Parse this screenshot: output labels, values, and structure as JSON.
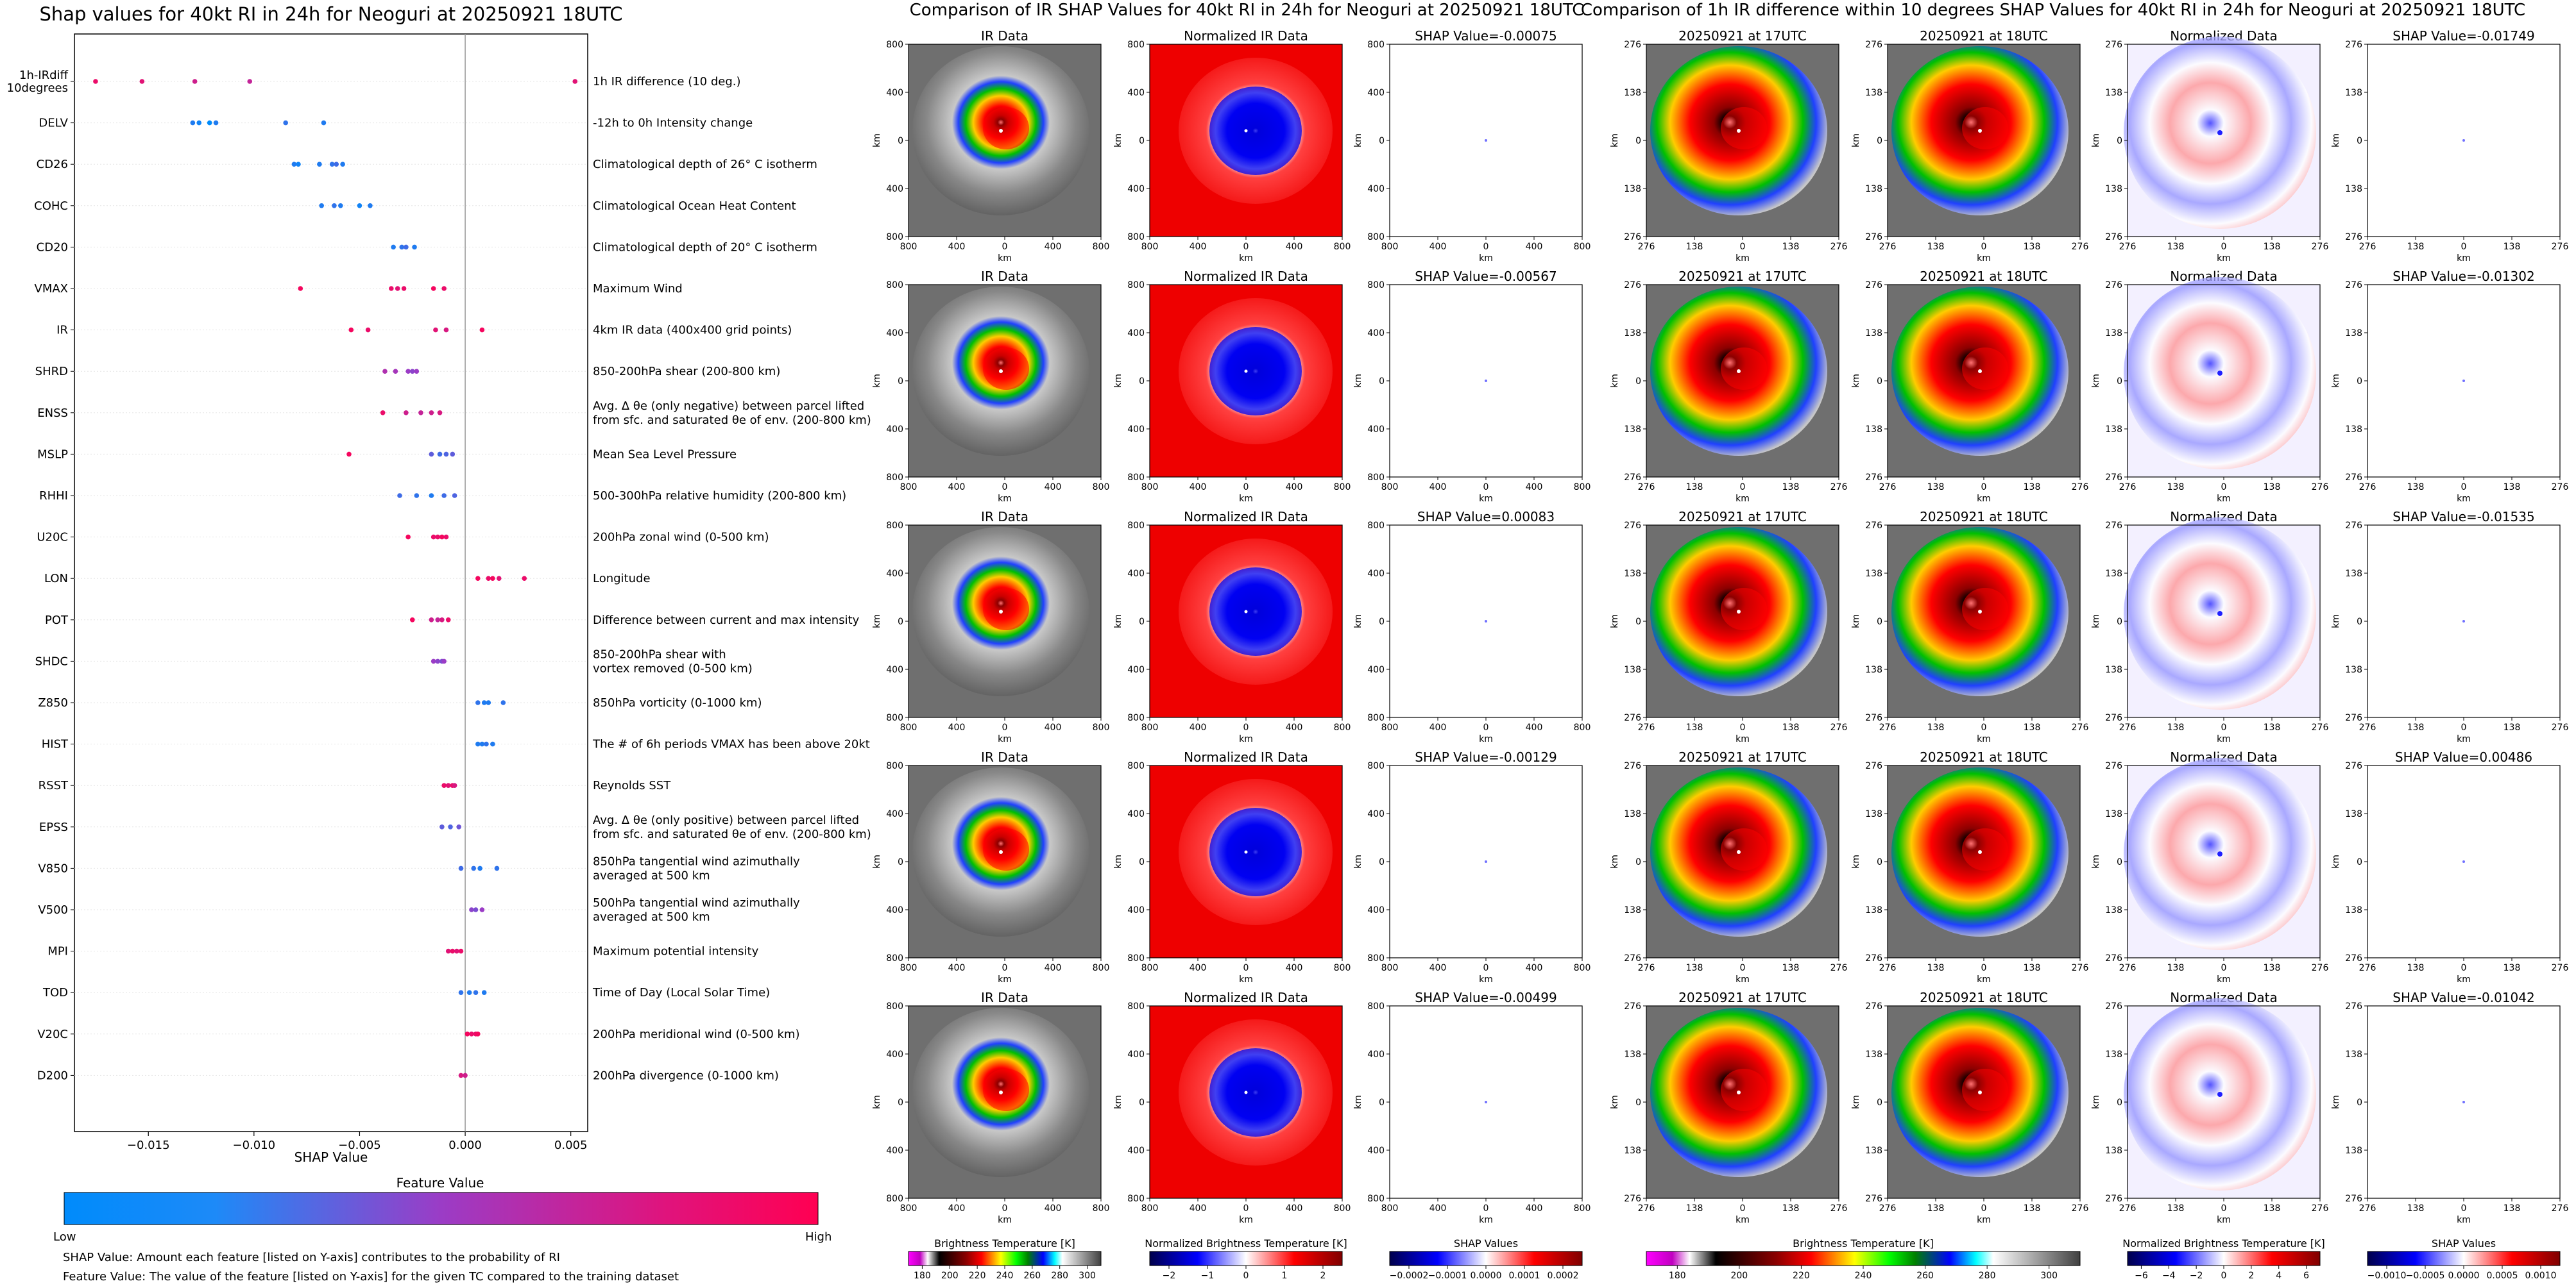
{
  "titles": {
    "left": "Shap values for 40kt RI in 24h for Neoguri at 20250921 18UTC",
    "middle": "Comparison of IR SHAP Values for 40kt RI in 24h for Neoguri at 20250921 18UTC",
    "right": "Comparison of 1h IR difference within 10 degrees SHAP Values for 40kt RI in 24h for Neoguri at 20250921 18UTC"
  },
  "left_panel": {
    "xlabel": "SHAP Value",
    "colorbar_title": "Feature Value",
    "colorbar_low": "Low",
    "colorbar_high": "High",
    "note1": "SHAP Value: Amount each feature [listed on Y-axis] contributes to the probability of RI",
    "note2": "Feature Value: The value of the feature [listed on Y-axis] for the given TC compared to the training dataset",
    "colors": {
      "low": "#008bfb",
      "mid": "#9b3cc6",
      "high": "#ff0052"
    }
  },
  "chart_data": [
    {
      "type": "scatter",
      "title": "Shap values for 40kt RI in 24h for Neoguri at 20250921 18UTC",
      "xlabel": "SHAP Value",
      "xlim": [
        -0.0185,
        0.0058
      ],
      "xticks": [
        -0.015,
        -0.01,
        -0.005,
        0.0,
        0.005
      ],
      "xtick_labels": [
        "−0.015",
        "−0.010",
        "−0.005",
        "0.000",
        "0.005"
      ],
      "features": [
        {
          "code": "1h-IRdiff\n10degrees",
          "desc": "1h IR difference (10 deg.)",
          "points": [
            [
              -0.0175,
              0.9
            ],
            [
              -0.0153,
              0.85
            ],
            [
              -0.0128,
              0.75
            ],
            [
              -0.0102,
              0.7
            ],
            [
              0.0052,
              0.85
            ]
          ]
        },
        {
          "code": "DELV",
          "desc": "-12h to 0h Intensity change",
          "points": [
            [
              -0.0129,
              0.1
            ],
            [
              -0.0126,
              0.05
            ],
            [
              -0.0121,
              0.0
            ],
            [
              -0.0118,
              0.1
            ],
            [
              -0.0085,
              0.15
            ],
            [
              -0.0067,
              0.1
            ]
          ]
        },
        {
          "code": "CD26",
          "desc": "Climatological depth of 26° C isotherm",
          "points": [
            [
              -0.0081,
              0.1
            ],
            [
              -0.0079,
              0.05
            ],
            [
              -0.0069,
              0.1
            ],
            [
              -0.0063,
              0.15
            ],
            [
              -0.0061,
              0.2
            ],
            [
              -0.0058,
              0.1
            ]
          ]
        },
        {
          "code": "COHC",
          "desc": "Climatological Ocean Heat Content",
          "points": [
            [
              -0.0068,
              0.1
            ],
            [
              -0.0062,
              0.15
            ],
            [
              -0.0059,
              0.1
            ],
            [
              -0.005,
              0.05
            ],
            [
              -0.0045,
              0.1
            ]
          ]
        },
        {
          "code": "CD20",
          "desc": "Climatological depth of 20° C isotherm",
          "points": [
            [
              -0.0034,
              0.1
            ],
            [
              -0.003,
              0.15
            ],
            [
              -0.0028,
              0.2
            ],
            [
              -0.0024,
              0.1
            ]
          ]
        },
        {
          "code": "VMAX",
          "desc": "Maximum Wind",
          "points": [
            [
              -0.0078,
              0.95
            ],
            [
              -0.0035,
              0.9
            ],
            [
              -0.0032,
              0.85
            ],
            [
              -0.0029,
              0.9
            ],
            [
              -0.0015,
              0.95
            ],
            [
              -0.001,
              0.9
            ]
          ]
        },
        {
          "code": "IR",
          "desc": "4km IR data (400x400 grid points)",
          "points": [
            [
              -0.0054,
              0.95
            ],
            [
              -0.0046,
              0.9
            ],
            [
              -0.0014,
              0.85
            ],
            [
              -0.0009,
              0.8
            ],
            [
              0.0008,
              0.95
            ]
          ]
        },
        {
          "code": "SHRD",
          "desc": "850-200hPa shear (200-800 km)",
          "points": [
            [
              -0.0038,
              0.6
            ],
            [
              -0.0033,
              0.55
            ],
            [
              -0.0027,
              0.5
            ],
            [
              -0.0025,
              0.45
            ],
            [
              -0.0023,
              0.5
            ]
          ]
        },
        {
          "code": "ENSS",
          "desc": "Avg. Δ θe (only negative) between parcel lifted\nfrom sfc. and saturated θe of env. (200-800 km)",
          "points": [
            [
              -0.0039,
              0.9
            ],
            [
              -0.0028,
              0.75
            ],
            [
              -0.0021,
              0.7
            ],
            [
              -0.0016,
              0.75
            ],
            [
              -0.0012,
              0.8
            ]
          ]
        },
        {
          "code": "MSLP",
          "desc": "Mean Sea Level Pressure",
          "points": [
            [
              -0.0055,
              0.95
            ],
            [
              -0.0016,
              0.3
            ],
            [
              -0.0012,
              0.2
            ],
            [
              -0.0009,
              0.25
            ],
            [
              -0.0006,
              0.3
            ]
          ]
        },
        {
          "code": "RHHI",
          "desc": "500-300hPa relative humidity (200-800 km)",
          "points": [
            [
              -0.0031,
              0.2
            ],
            [
              -0.0023,
              0.15
            ],
            [
              -0.0016,
              0.1
            ],
            [
              -0.001,
              0.2
            ],
            [
              -0.0005,
              0.25
            ]
          ]
        },
        {
          "code": "U20C",
          "desc": "200hPa zonal wind (0-500 km)",
          "points": [
            [
              -0.0027,
              0.95
            ],
            [
              -0.0015,
              0.9
            ],
            [
              -0.0013,
              0.9
            ],
            [
              -0.0011,
              0.95
            ],
            [
              -0.0009,
              0.9
            ]
          ]
        },
        {
          "code": "LON",
          "desc": "Longitude",
          "points": [
            [
              0.0006,
              0.95
            ],
            [
              0.0011,
              0.9
            ],
            [
              0.0013,
              0.95
            ],
            [
              0.0016,
              0.85
            ],
            [
              0.0028,
              0.9
            ]
          ]
        },
        {
          "code": "POT",
          "desc": "Difference between current and max intensity",
          "points": [
            [
              -0.0025,
              0.95
            ],
            [
              -0.0016,
              0.75
            ],
            [
              -0.0013,
              0.7
            ],
            [
              -0.0011,
              0.8
            ],
            [
              -0.0008,
              0.9
            ]
          ]
        },
        {
          "code": "SHDC",
          "desc": "850-200hPa shear with\nvortex removed (0-500 km)",
          "points": [
            [
              -0.0015,
              0.5
            ],
            [
              -0.0013,
              0.45
            ],
            [
              -0.0011,
              0.4
            ],
            [
              -0.001,
              0.5
            ]
          ]
        },
        {
          "code": "Z850",
          "desc": "850hPa vorticity (0-1000 km)",
          "points": [
            [
              0.0006,
              0.15
            ],
            [
              0.0009,
              0.1
            ],
            [
              0.0011,
              0.1
            ],
            [
              0.0018,
              0.15
            ]
          ]
        },
        {
          "code": "HIST",
          "desc": "The # of 6h periods VMAX has been above 20kt",
          "points": [
            [
              0.0006,
              0.1
            ],
            [
              0.0008,
              0.1
            ],
            [
              0.001,
              0.15
            ],
            [
              0.0013,
              0.1
            ]
          ]
        },
        {
          "code": "RSST",
          "desc": "Reynolds SST",
          "points": [
            [
              -0.001,
              0.9
            ],
            [
              -0.0008,
              0.85
            ],
            [
              -0.0006,
              0.9
            ],
            [
              -0.0005,
              0.8
            ]
          ]
        },
        {
          "code": "EPSS",
          "desc": "Avg. Δ θe (only positive) between parcel lifted\nfrom sfc. and saturated θe of env. (200-800 km)",
          "points": [
            [
              -0.0011,
              0.3
            ],
            [
              -0.0007,
              0.25
            ],
            [
              -0.0003,
              0.35
            ]
          ]
        },
        {
          "code": "V850",
          "desc": "850hPa tangential wind azimuthally\naveraged at 500 km",
          "points": [
            [
              -0.0002,
              0.2
            ],
            [
              0.0004,
              0.15
            ],
            [
              0.0007,
              0.1
            ],
            [
              0.0015,
              0.15
            ]
          ]
        },
        {
          "code": "V500",
          "desc": "500hPa tangential wind azimuthally\naveraged at 500 km",
          "points": [
            [
              0.0003,
              0.45
            ],
            [
              0.0005,
              0.4
            ],
            [
              0.0008,
              0.5
            ]
          ]
        },
        {
          "code": "MPI",
          "desc": "Maximum potential intensity",
          "points": [
            [
              -0.0008,
              0.85
            ],
            [
              -0.0006,
              0.9
            ],
            [
              -0.0004,
              0.85
            ],
            [
              -0.0002,
              0.9
            ]
          ]
        },
        {
          "code": "TOD",
          "desc": "Time of Day (Local Solar Time)",
          "points": [
            [
              -0.0002,
              0.15
            ],
            [
              0.0002,
              0.1
            ],
            [
              0.0005,
              0.15
            ],
            [
              0.0009,
              0.1
            ]
          ]
        },
        {
          "code": "V20C",
          "desc": "200hPa meridional wind (0-500 km)",
          "points": [
            [
              0.0001,
              0.95
            ],
            [
              0.0003,
              0.9
            ],
            [
              0.0005,
              0.9
            ],
            [
              0.0006,
              0.95
            ]
          ]
        },
        {
          "code": "D200",
          "desc": "200hPa divergence (0-1000 km)",
          "points": [
            [
              -0.0002,
              0.8
            ],
            [
              0.0,
              0.75
            ]
          ]
        }
      ]
    },
    {
      "type": "heatmap",
      "title": "Comparison of IR SHAP Values for 40kt RI in 24h for Neoguri at 20250921 18UTC",
      "column_titles": [
        "IR Data",
        "Normalized IR Data"
      ],
      "shap_titles": [
        "SHAP Value=-0.00075",
        "SHAP Value=-0.00567",
        "SHAP Value=0.00083",
        "SHAP Value=-0.00129",
        "SHAP Value=-0.00499"
      ],
      "xlabel": "km",
      "ylabel": "km",
      "xticks": [
        "800",
        "400",
        "0",
        "400",
        "800"
      ],
      "yticks": [
        "800",
        "400",
        "0",
        "400",
        "800"
      ],
      "colorbars": [
        {
          "label": "Brightness Temperature [K]",
          "ticks": [
            "180",
            "200",
            "220",
            "240",
            "260",
            "280",
            "300"
          ]
        },
        {
          "label": "Normalized Brightness Temperature [K]",
          "ticks": [
            "−2",
            "−1",
            "0",
            "1",
            "2"
          ]
        },
        {
          "label": "SHAP Values",
          "ticks": [
            "−0.0002",
            "−0.0001",
            "0.0000",
            "0.0001",
            "0.0002"
          ]
        }
      ]
    },
    {
      "type": "heatmap",
      "title": "Comparison of 1h IR difference within 10 degrees SHAP Values for 40kt RI in 24h for Neoguri at 20250921 18UTC",
      "column_titles": [
        "20250921 at 17UTC",
        "20250921 at 18UTC",
        "Normalized Data"
      ],
      "shap_titles": [
        "SHAP Value=-0.01749",
        "SHAP Value=-0.01302",
        "SHAP Value=-0.01535",
        "SHAP Value=0.00486",
        "SHAP Value=-0.01042"
      ],
      "xlabel": "km",
      "ylabel": "km",
      "xticks": [
        "276",
        "138",
        "0",
        "138",
        "276"
      ],
      "yticks": [
        "276",
        "138",
        "0",
        "138",
        "276"
      ],
      "colorbars": [
        {
          "label": "Brightness Temperature [K]",
          "ticks": [
            "180",
            "200",
            "220",
            "240",
            "260",
            "280",
            "300"
          ]
        },
        {
          "label": "Normalized Brightness Temperature [K]",
          "ticks": [
            "−6",
            "−4",
            "−2",
            "0",
            "2",
            "4",
            "6"
          ]
        },
        {
          "label": "SHAP Values",
          "ticks": [
            "−0.0010",
            "−0.0005",
            "0.0000",
            "0.0005",
            "0.0010"
          ]
        }
      ]
    }
  ]
}
